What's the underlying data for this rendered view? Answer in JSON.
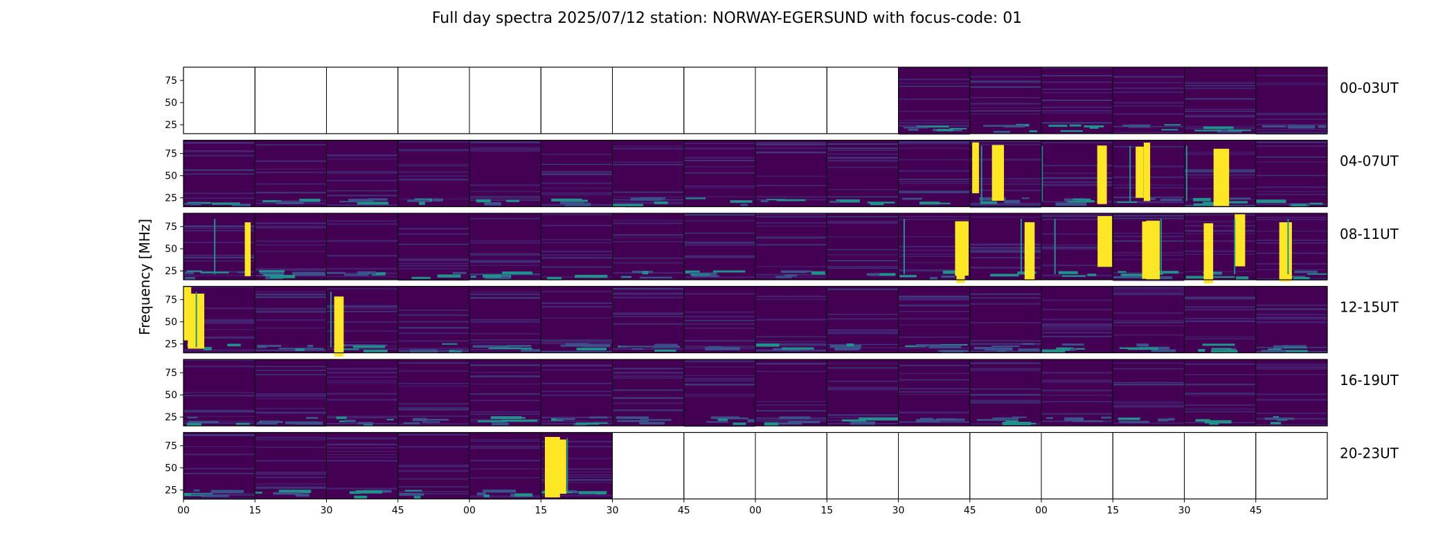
{
  "chart_data": {
    "type": "heatmap",
    "title": "Full day spectra 2025/07/12 station: NORWAY-EGERSUND with focus-code: 01",
    "ylabel": "Frequency [MHz]",
    "xlabel": "",
    "y_ticks": [
      25,
      50,
      75
    ],
    "ylim": [
      15,
      90
    ],
    "x_tick_labels": [
      "00",
      "15",
      "30",
      "45",
      "00",
      "15",
      "30",
      "45",
      "00",
      "15",
      "30",
      "45",
      "00",
      "15",
      "30",
      "45"
    ],
    "colormap": [
      "#440154",
      "#3b528b",
      "#21918c",
      "#5ec962",
      "#fde725"
    ],
    "rows": [
      {
        "label": "00-03UT",
        "panels": [
          0,
          0,
          0,
          0,
          0,
          0,
          0,
          0,
          0,
          0,
          1,
          1,
          1,
          1,
          1,
          1
        ],
        "bursts": []
      },
      {
        "label": "04-07UT",
        "panels": [
          1,
          1,
          1,
          1,
          1,
          1,
          1,
          1,
          1,
          1,
          1,
          1,
          1,
          1,
          1,
          1
        ],
        "bursts": [
          11,
          12,
          13,
          14
        ]
      },
      {
        "label": "08-11UT",
        "panels": [
          1,
          1,
          1,
          1,
          1,
          1,
          1,
          1,
          1,
          1,
          1,
          1,
          1,
          1,
          1,
          1
        ],
        "bursts": [
          0,
          10,
          11,
          12,
          13,
          14,
          15
        ]
      },
      {
        "label": "12-15UT",
        "panels": [
          1,
          1,
          1,
          1,
          1,
          1,
          1,
          1,
          1,
          1,
          1,
          1,
          1,
          1,
          1,
          1
        ],
        "bursts": [
          0,
          2
        ]
      },
      {
        "label": "16-19UT",
        "panels": [
          1,
          1,
          1,
          1,
          1,
          1,
          1,
          1,
          1,
          1,
          1,
          1,
          1,
          1,
          1,
          1
        ],
        "bursts": []
      },
      {
        "label": "20-23UT",
        "panels": [
          1,
          1,
          1,
          1,
          1,
          1,
          0,
          0,
          0,
          0,
          0,
          0,
          0,
          0,
          0,
          0
        ],
        "bursts": [
          5
        ]
      }
    ]
  }
}
